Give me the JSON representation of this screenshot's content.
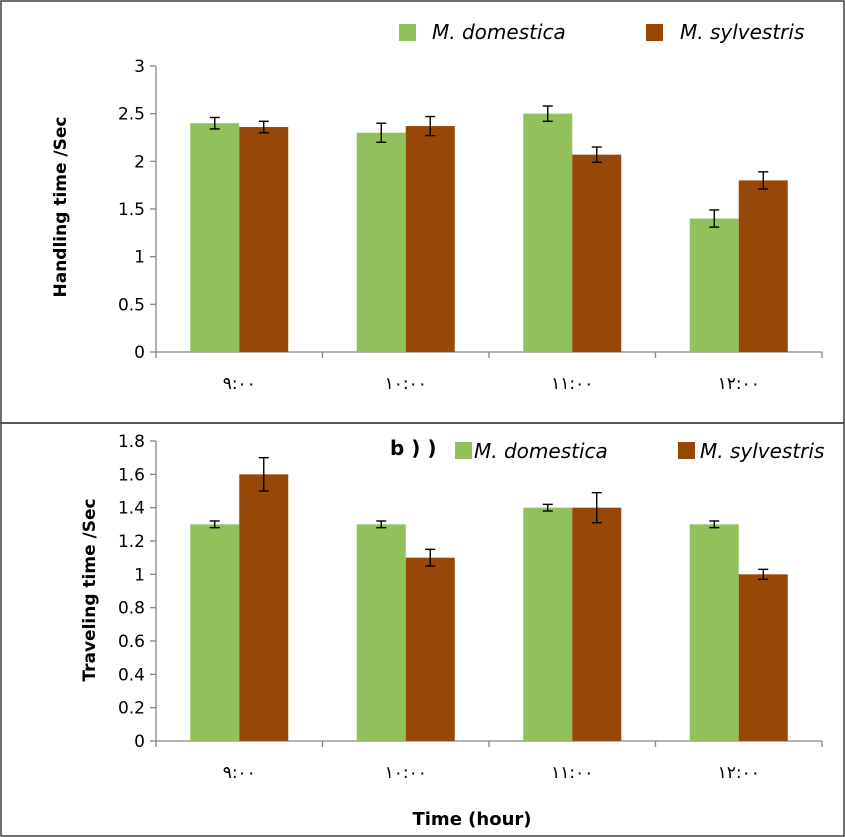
{
  "colors": {
    "domestica": "#92c05a",
    "sylvestris": "#984806",
    "axis": "#868686",
    "frame": "#404040"
  },
  "chart_data": [
    {
      "type": "bar",
      "categories": [
        "٩:٠٠",
        "١٠:٠٠",
        "١١:٠٠",
        "١٢:٠٠"
      ],
      "series": [
        {
          "name": "M. domestica",
          "values": [
            2.4,
            2.3,
            2.5,
            1.4
          ],
          "errors": [
            0.06,
            0.1,
            0.08,
            0.09
          ]
        },
        {
          "name": "M. sylvestris",
          "values": [
            2.36,
            2.37,
            2.07,
            1.8
          ],
          "errors": [
            0.06,
            0.1,
            0.08,
            0.09
          ]
        }
      ],
      "ylabel": "Handling time /Sec",
      "xlabel": "",
      "ylim": [
        0,
        3
      ],
      "yticks": [
        "0",
        "0.5",
        "1",
        "1.5",
        "2",
        "2.5",
        "3"
      ],
      "panel_label": "",
      "legend": "top"
    },
    {
      "type": "bar",
      "categories": [
        "٩:٠٠",
        "١٠:٠٠",
        "١١:٠٠",
        "١٢:٠٠"
      ],
      "series": [
        {
          "name": "M. domestica",
          "values": [
            1.3,
            1.3,
            1.4,
            1.3
          ],
          "errors": [
            0.02,
            0.02,
            0.02,
            0.02
          ]
        },
        {
          "name": "M. sylvestris",
          "values": [
            1.6,
            1.1,
            1.4,
            1.0
          ],
          "errors": [
            0.1,
            0.05,
            0.09,
            0.03
          ]
        }
      ],
      "ylabel": "Traveling time /Sec",
      "xlabel": "Time (hour)",
      "ylim": [
        0,
        1.8
      ],
      "yticks": [
        "0",
        "0.2",
        "0.4",
        "0.6",
        "0.8",
        "1",
        "1.2",
        "1.4",
        "1.6",
        "1.8"
      ],
      "panel_label": "b ) )",
      "legend": "top-right"
    }
  ]
}
